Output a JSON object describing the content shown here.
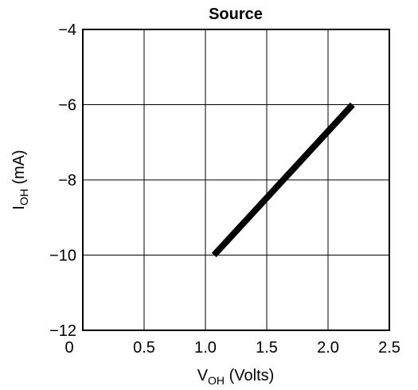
{
  "chart_data": {
    "type": "line",
    "title": "Source",
    "xlabel": {
      "base": "V",
      "sub": "OH",
      "suffix": " (Volts)"
    },
    "ylabel": {
      "base": "I",
      "sub": "OH",
      "suffix": " (mA)"
    },
    "xlim": [
      0,
      2.5
    ],
    "ylim": [
      -12,
      -4
    ],
    "x_ticks": [
      0,
      0.5,
      1.0,
      1.5,
      2.0,
      2.5
    ],
    "x_tick_labels": [
      "0",
      "0.5",
      "1.0",
      "1.5",
      "2.0",
      "2.5"
    ],
    "y_ticks": [
      -12,
      -10,
      -8,
      -6,
      -4
    ],
    "y_tick_labels": [
      "−12",
      "−10",
      "−8",
      "−6",
      "−4"
    ],
    "grid": true,
    "series": [
      {
        "x": [
          1.07,
          2.2
        ],
        "y": [
          -10,
          -6
        ],
        "color": "#000000"
      }
    ]
  }
}
